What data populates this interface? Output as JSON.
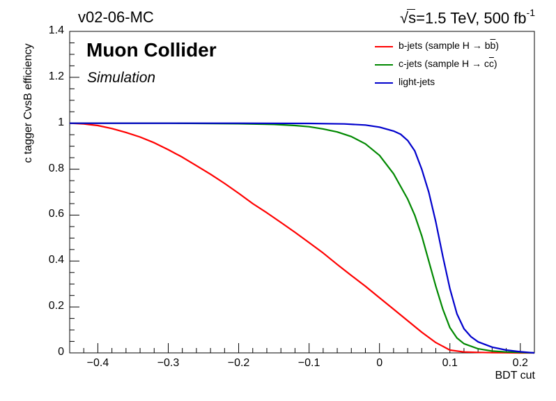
{
  "header": {
    "release": "v02-06-MC",
    "energy_sqrt": "s",
    "energy_text": "=1.5 TeV, 500 fb",
    "energy_sup": "-1"
  },
  "collab": {
    "name": "Muon Collider",
    "status": "Simulation"
  },
  "chart_data": {
    "type": "line",
    "xlabel": "BDT cut",
    "ylabel": "c tagger CvsB efficiency",
    "xlim": [
      -0.44,
      0.22
    ],
    "ylim": [
      0,
      1.4
    ],
    "xticks": [
      -0.4,
      -0.3,
      -0.2,
      -0.1,
      0,
      0.1,
      0.2
    ],
    "xtick_labels": [
      "−0.4",
      "−0.3",
      "−0.2",
      "−0.1",
      "0",
      "0.1",
      "0.2"
    ],
    "yticks": [
      0,
      0.2,
      0.4,
      0.6,
      0.8,
      1,
      1.2,
      1.4
    ],
    "ytick_labels": [
      "0",
      "0.2",
      "0.4",
      "0.6",
      "0.8",
      "1",
      "1.2",
      "1.4"
    ],
    "grid": false,
    "legend_position": "top-right",
    "series": [
      {
        "name": "b-jets (sample H → bb̅)",
        "legend_parts": [
          "b-jets (sample H → b",
          "b",
          ")"
        ],
        "color": "#ff0000",
        "x": [
          -0.44,
          -0.42,
          -0.4,
          -0.38,
          -0.36,
          -0.34,
          -0.32,
          -0.3,
          -0.28,
          -0.26,
          -0.24,
          -0.22,
          -0.2,
          -0.18,
          -0.16,
          -0.14,
          -0.12,
          -0.1,
          -0.08,
          -0.06,
          -0.04,
          -0.02,
          0.0,
          0.02,
          0.04,
          0.06,
          0.08,
          0.1,
          0.12,
          0.14,
          0.16,
          0.18,
          0.2,
          0.22
        ],
        "y": [
          1.0,
          0.997,
          0.99,
          0.977,
          0.96,
          0.94,
          0.915,
          0.885,
          0.852,
          0.815,
          0.778,
          0.738,
          0.695,
          0.65,
          0.61,
          0.568,
          0.525,
          0.48,
          0.435,
          0.385,
          0.337,
          0.29,
          0.24,
          0.19,
          0.14,
          0.09,
          0.045,
          0.012,
          0.004,
          0.002,
          0.001,
          0.0005,
          0.0,
          0.0
        ]
      },
      {
        "name": "c-jets (sample H → cc̅)",
        "legend_parts": [
          "c-jets (sample H → c",
          "c",
          ")"
        ],
        "color": "#008800",
        "x": [
          -0.44,
          -0.4,
          -0.3,
          -0.2,
          -0.15,
          -0.12,
          -0.1,
          -0.08,
          -0.06,
          -0.04,
          -0.02,
          0.0,
          0.02,
          0.04,
          0.05,
          0.06,
          0.07,
          0.08,
          0.09,
          0.1,
          0.11,
          0.12,
          0.14,
          0.16,
          0.18,
          0.2,
          0.22
        ],
        "y": [
          1.0,
          1.0,
          1.0,
          0.998,
          0.995,
          0.99,
          0.985,
          0.975,
          0.962,
          0.942,
          0.91,
          0.86,
          0.78,
          0.67,
          0.6,
          0.51,
          0.4,
          0.29,
          0.19,
          0.11,
          0.065,
          0.04,
          0.018,
          0.008,
          0.004,
          0.002,
          0.0
        ]
      },
      {
        "name": "light-jets",
        "legend_parts": [
          "light-jets",
          "",
          ""
        ],
        "color": "#0000cc",
        "x": [
          -0.44,
          -0.4,
          -0.3,
          -0.2,
          -0.1,
          -0.05,
          -0.02,
          0.0,
          0.02,
          0.03,
          0.04,
          0.05,
          0.06,
          0.07,
          0.08,
          0.09,
          0.1,
          0.11,
          0.12,
          0.13,
          0.14,
          0.16,
          0.18,
          0.2,
          0.22
        ],
        "y": [
          1.0,
          1.0,
          1.0,
          1.0,
          0.999,
          0.997,
          0.992,
          0.983,
          0.966,
          0.952,
          0.925,
          0.88,
          0.8,
          0.7,
          0.57,
          0.42,
          0.28,
          0.17,
          0.105,
          0.07,
          0.048,
          0.025,
          0.012,
          0.005,
          0.0
        ]
      }
    ]
  }
}
